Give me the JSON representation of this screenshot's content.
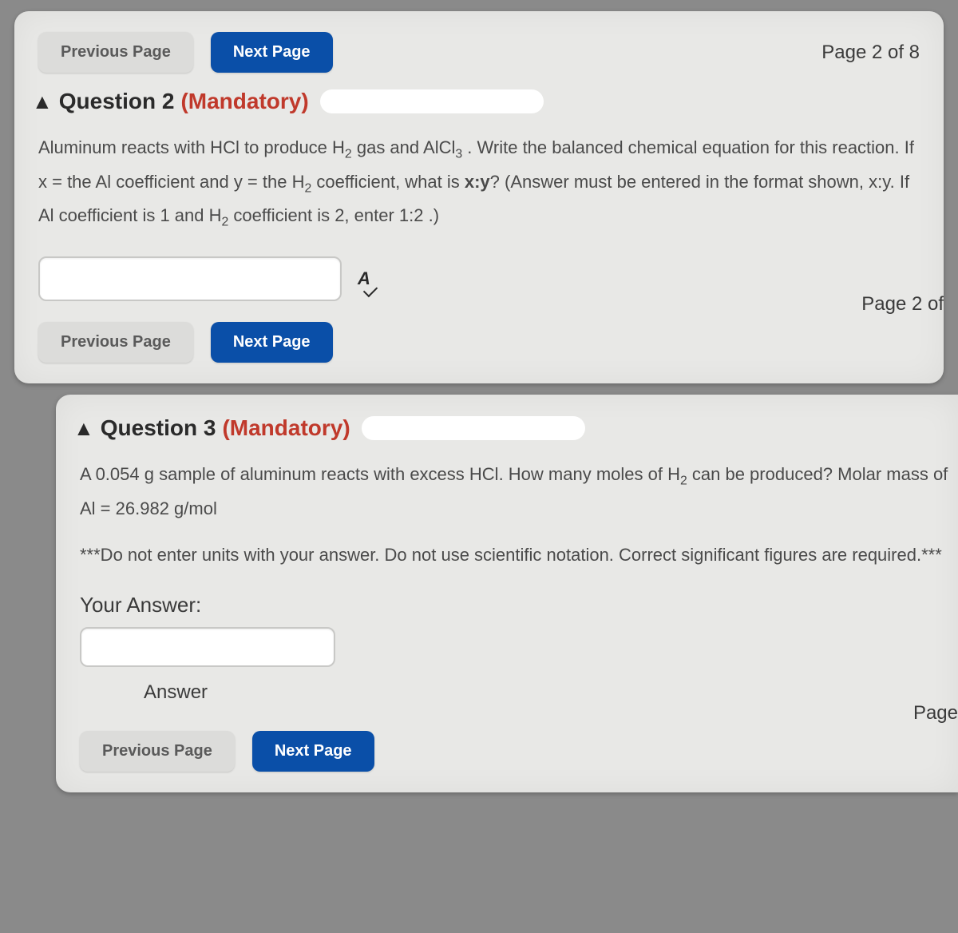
{
  "colors": {
    "page_bg": "#8a8a8a",
    "card_bg": "#e8e8e6",
    "btn_prev_bg": "#dcdcda",
    "btn_prev_text": "#5a5a5a",
    "btn_next_bg": "#0a4fa8",
    "btn_next_text": "#ffffff",
    "mandatory": "#c0392b",
    "body_text": "#4a4a4a"
  },
  "q2": {
    "nav_top": {
      "prev": "Previous Page",
      "next": "Next Page",
      "page": "Page 2 of 8"
    },
    "header": {
      "warn": "▲",
      "title": "Question 2",
      "mandatory": "(Mandatory)"
    },
    "body_html": "Aluminum reacts with HCl to produce H<sub>2</sub> gas and AlCl<sub>3</sub> . Write the balanced chemical equation for this reaction.  If x = the Al coefficient and y = the H<sub>2</sub> coefficient, what is <b>x:y</b>?  (Answer must be entered in the format shown, x:y.  If Al coefficient is 1 and H<sub>2</sub> coefficient is 2, enter 1:2 .)",
    "input_value": "",
    "spell_label": "A",
    "nav_bottom": {
      "prev": "Previous Page",
      "next": "Next Page",
      "page": "Page 2 of "
    }
  },
  "q3": {
    "header": {
      "warn": "▲",
      "title": "Question 3",
      "mandatory": "(Mandatory)"
    },
    "body_html": "A 0.054 g sample of aluminum reacts with excess HCl.  How many moles of H<sub>2</sub> can be produced? Molar mass of Al = 26.982 g/mol",
    "note_html": "***Do not enter units with your answer.  Do not use scientific notation.  Correct significant figures are required.***",
    "your_answer_label": "Your Answer:",
    "input_value": "",
    "answer_label": "Answer",
    "nav_bottom": {
      "prev": "Previous Page",
      "next": "Next Page",
      "page": "Page"
    }
  }
}
